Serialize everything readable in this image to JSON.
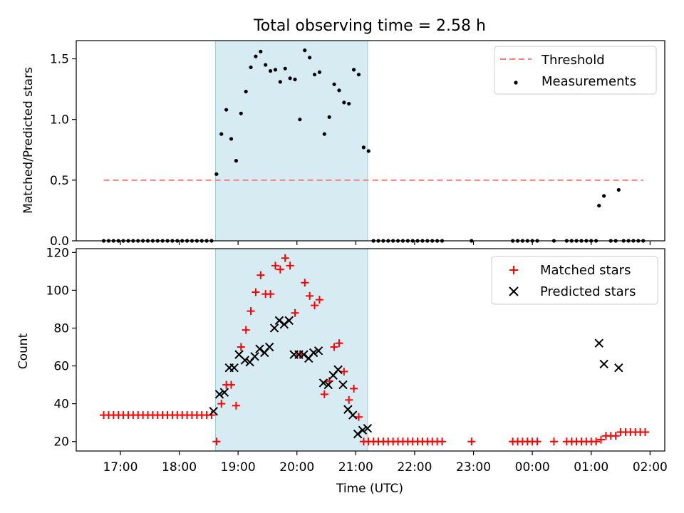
{
  "figure": {
    "title": "Total observing time = 2.58 h",
    "xlabel": "Time (UTC)"
  },
  "colors": {
    "band": "#add8e6",
    "threshold": "#ff7f7f",
    "matched": "#ff0000",
    "predicted": "#000000",
    "measurement": "#000000"
  },
  "chart_data": [
    {
      "type": "scatter",
      "panel": "top",
      "title": "Total observing time = 2.58 h",
      "xlabel": "",
      "ylabel": "Matched/Predicted stars",
      "xlim": [
        "16:15",
        "02:15"
      ],
      "ylim": [
        0,
        1.65
      ],
      "yticks": [
        0.0,
        0.5,
        1.0,
        1.5
      ],
      "ytick_labels": [
        "0.0",
        "0.5",
        "1.0",
        "1.5"
      ],
      "xticks": [
        "17:00",
        "18:00",
        "19:00",
        "20:00",
        "21:00",
        "22:00",
        "23:00",
        "00:00",
        "01:00",
        "02:00"
      ],
      "grid": false,
      "legend": {
        "position": "top-right",
        "entries": [
          "Threshold",
          "Measurements"
        ]
      },
      "shaded_interval": [
        "18:37",
        "21:12"
      ],
      "threshold": {
        "name": "Threshold",
        "value": 0.5,
        "x_range": [
          "16:43",
          "01:53"
        ]
      },
      "series": [
        {
          "name": "Measurements",
          "marker": "dot",
          "points": [
            [
              "16:43",
              0
            ],
            [
              "16:48",
              0
            ],
            [
              "16:53",
              0
            ],
            [
              "16:58",
              0
            ],
            [
              "17:03",
              0
            ],
            [
              "17:08",
              0
            ],
            [
              "17:13",
              0
            ],
            [
              "17:18",
              0
            ],
            [
              "17:23",
              0
            ],
            [
              "17:28",
              0
            ],
            [
              "17:33",
              0
            ],
            [
              "17:38",
              0
            ],
            [
              "17:43",
              0
            ],
            [
              "17:48",
              0
            ],
            [
              "17:53",
              0
            ],
            [
              "17:58",
              0
            ],
            [
              "18:03",
              0
            ],
            [
              "18:08",
              0
            ],
            [
              "18:13",
              0
            ],
            [
              "18:18",
              0
            ],
            [
              "18:23",
              0
            ],
            [
              "18:28",
              0
            ],
            [
              "18:33",
              0
            ],
            [
              "18:38",
              0.55
            ],
            [
              "18:43",
              0.88
            ],
            [
              "18:48",
              1.08
            ],
            [
              "18:53",
              0.84
            ],
            [
              "18:58",
              0.66
            ],
            [
              "19:03",
              1.05
            ],
            [
              "19:08",
              1.23
            ],
            [
              "19:13",
              1.43
            ],
            [
              "19:18",
              1.52
            ],
            [
              "19:23",
              1.56
            ],
            [
              "19:28",
              1.45
            ],
            [
              "19:33",
              1.4
            ],
            [
              "19:38",
              1.41
            ],
            [
              "19:43",
              1.31
            ],
            [
              "19:48",
              1.42
            ],
            [
              "19:53",
              1.34
            ],
            [
              "19:58",
              1.33
            ],
            [
              "20:03",
              1.0
            ],
            [
              "20:08",
              1.57
            ],
            [
              "20:13",
              1.51
            ],
            [
              "20:18",
              1.37
            ],
            [
              "20:23",
              1.39
            ],
            [
              "20:28",
              0.88
            ],
            [
              "20:33",
              1.02
            ],
            [
              "20:38",
              1.29
            ],
            [
              "20:43",
              1.24
            ],
            [
              "20:48",
              1.14
            ],
            [
              "20:53",
              1.13
            ],
            [
              "20:58",
              1.41
            ],
            [
              "21:03",
              1.37
            ],
            [
              "21:08",
              0.77
            ],
            [
              "21:13",
              0.74
            ],
            [
              "21:18",
              0
            ],
            [
              "21:23",
              0
            ],
            [
              "21:28",
              0
            ],
            [
              "21:33",
              0
            ],
            [
              "21:38",
              0
            ],
            [
              "21:43",
              0
            ],
            [
              "21:48",
              0
            ],
            [
              "21:53",
              0
            ],
            [
              "21:58",
              0
            ],
            [
              "22:03",
              0
            ],
            [
              "22:08",
              0
            ],
            [
              "22:13",
              0
            ],
            [
              "22:18",
              0
            ],
            [
              "22:23",
              0
            ],
            [
              "22:28",
              0
            ],
            [
              "22:58",
              0
            ],
            [
              "23:40",
              0
            ],
            [
              "23:45",
              0
            ],
            [
              "23:50",
              0
            ],
            [
              "23:55",
              0
            ],
            [
              "00:00",
              0
            ],
            [
              "00:05",
              0
            ],
            [
              "00:22",
              0
            ],
            [
              "00:35",
              0
            ],
            [
              "00:40",
              0
            ],
            [
              "00:45",
              0
            ],
            [
              "00:50",
              0
            ],
            [
              "00:55",
              0
            ],
            [
              "01:00",
              0
            ],
            [
              "01:05",
              0
            ],
            [
              "01:08",
              0.29
            ],
            [
              "01:13",
              0.37
            ],
            [
              "01:20",
              0
            ],
            [
              "01:25",
              0
            ],
            [
              "01:28",
              0.42
            ],
            [
              "01:33",
              0
            ],
            [
              "01:38",
              0
            ],
            [
              "01:43",
              0
            ],
            [
              "01:48",
              0
            ],
            [
              "01:53",
              0
            ]
          ]
        }
      ]
    },
    {
      "type": "scatter",
      "panel": "bottom",
      "xlabel": "Time (UTC)",
      "ylabel": "Count",
      "xlim": [
        "16:15",
        "02:15"
      ],
      "ylim": [
        15,
        122
      ],
      "yticks": [
        20,
        40,
        60,
        80,
        100,
        120
      ],
      "ytick_labels": [
        "20",
        "40",
        "60",
        "80",
        "100",
        "120"
      ],
      "xticks": [
        "17:00",
        "18:00",
        "19:00",
        "20:00",
        "21:00",
        "22:00",
        "23:00",
        "00:00",
        "01:00",
        "02:00"
      ],
      "grid": false,
      "legend": {
        "position": "top-right",
        "entries": [
          "Matched stars",
          "Predicted stars"
        ]
      },
      "shaded_interval": [
        "18:37",
        "21:12"
      ],
      "series": [
        {
          "name": "Matched stars",
          "marker": "plus",
          "points": [
            [
              "16:43",
              34
            ],
            [
              "16:48",
              34
            ],
            [
              "16:53",
              34
            ],
            [
              "16:58",
              34
            ],
            [
              "17:03",
              34
            ],
            [
              "17:08",
              34
            ],
            [
              "17:13",
              34
            ],
            [
              "17:18",
              34
            ],
            [
              "17:23",
              34
            ],
            [
              "17:28",
              34
            ],
            [
              "17:33",
              34
            ],
            [
              "17:38",
              34
            ],
            [
              "17:43",
              34
            ],
            [
              "17:48",
              34
            ],
            [
              "17:53",
              34
            ],
            [
              "17:58",
              34
            ],
            [
              "18:03",
              34
            ],
            [
              "18:08",
              34
            ],
            [
              "18:13",
              34
            ],
            [
              "18:18",
              34
            ],
            [
              "18:23",
              34
            ],
            [
              "18:28",
              34
            ],
            [
              "18:33",
              34
            ],
            [
              "18:38",
              20
            ],
            [
              "18:43",
              40
            ],
            [
              "18:48",
              50
            ],
            [
              "18:53",
              50
            ],
            [
              "18:58",
              39
            ],
            [
              "19:03",
              70
            ],
            [
              "19:08",
              79
            ],
            [
              "19:13",
              89
            ],
            [
              "19:18",
              99
            ],
            [
              "19:23",
              108
            ],
            [
              "19:28",
              98
            ],
            [
              "19:33",
              98
            ],
            [
              "19:38",
              113
            ],
            [
              "19:43",
              111
            ],
            [
              "19:48",
              117
            ],
            [
              "19:53",
              113
            ],
            [
              "19:58",
              88
            ],
            [
              "20:03",
              66
            ],
            [
              "20:08",
              104
            ],
            [
              "20:13",
              97
            ],
            [
              "20:18",
              92
            ],
            [
              "20:23",
              95
            ],
            [
              "20:28",
              45
            ],
            [
              "20:33",
              52
            ],
            [
              "20:38",
              70
            ],
            [
              "20:43",
              72
            ],
            [
              "20:48",
              57
            ],
            [
              "20:53",
              42
            ],
            [
              "20:58",
              48
            ],
            [
              "21:03",
              33
            ],
            [
              "21:08",
              20
            ],
            [
              "21:13",
              20
            ],
            [
              "21:18",
              20
            ],
            [
              "21:23",
              20
            ],
            [
              "21:28",
              20
            ],
            [
              "21:33",
              20
            ],
            [
              "21:38",
              20
            ],
            [
              "21:43",
              20
            ],
            [
              "21:48",
              20
            ],
            [
              "21:53",
              20
            ],
            [
              "21:58",
              20
            ],
            [
              "22:03",
              20
            ],
            [
              "22:08",
              20
            ],
            [
              "22:13",
              20
            ],
            [
              "22:18",
              20
            ],
            [
              "22:23",
              20
            ],
            [
              "22:28",
              20
            ],
            [
              "22:58",
              20
            ],
            [
              "23:40",
              20
            ],
            [
              "23:45",
              20
            ],
            [
              "23:50",
              20
            ],
            [
              "23:55",
              20
            ],
            [
              "00:00",
              20
            ],
            [
              "00:05",
              20
            ],
            [
              "00:22",
              20
            ],
            [
              "00:35",
              20
            ],
            [
              "00:40",
              20
            ],
            [
              "00:45",
              20
            ],
            [
              "00:50",
              20
            ],
            [
              "00:55",
              20
            ],
            [
              "01:00",
              20
            ],
            [
              "01:05",
              20
            ],
            [
              "01:10",
              21
            ],
            [
              "01:15",
              23
            ],
            [
              "01:20",
              23
            ],
            [
              "01:25",
              23
            ],
            [
              "01:30",
              25
            ],
            [
              "01:35",
              25
            ],
            [
              "01:40",
              25
            ],
            [
              "01:45",
              25
            ],
            [
              "01:50",
              25
            ],
            [
              "01:55",
              25
            ]
          ]
        },
        {
          "name": "Predicted stars",
          "marker": "x",
          "points": [
            [
              "18:35",
              36
            ],
            [
              "18:41",
              45
            ],
            [
              "18:46",
              46
            ],
            [
              "18:51",
              59
            ],
            [
              "18:56",
              59
            ],
            [
              "19:01",
              66
            ],
            [
              "19:07",
              63
            ],
            [
              "19:12",
              62
            ],
            [
              "19:17",
              65
            ],
            [
              "19:22",
              69
            ],
            [
              "19:27",
              67
            ],
            [
              "19:32",
              70
            ],
            [
              "19:37",
              80
            ],
            [
              "19:42",
              84
            ],
            [
              "19:47",
              82
            ],
            [
              "19:52",
              84
            ],
            [
              "19:57",
              66
            ],
            [
              "20:02",
              66
            ],
            [
              "20:07",
              66
            ],
            [
              "20:12",
              64
            ],
            [
              "20:17",
              67
            ],
            [
              "20:22",
              68
            ],
            [
              "20:27",
              51
            ],
            [
              "20:32",
              50
            ],
            [
              "20:37",
              55
            ],
            [
              "20:42",
              58
            ],
            [
              "20:47",
              50
            ],
            [
              "20:52",
              37
            ],
            [
              "20:57",
              34
            ],
            [
              "21:02",
              24
            ],
            [
              "21:07",
              26
            ],
            [
              "21:12",
              27
            ],
            [
              "01:08",
              72
            ],
            [
              "01:13",
              61
            ],
            [
              "01:28",
              59
            ]
          ]
        }
      ]
    }
  ]
}
